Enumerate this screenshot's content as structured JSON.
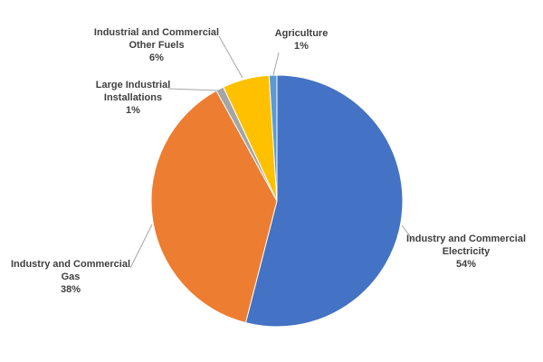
{
  "chart_data": {
    "type": "pie",
    "title": "",
    "slices": [
      {
        "label_lines": [
          "Industry and Commercial",
          "Electricity"
        ],
        "value": 54,
        "value_label": "54%",
        "color": "#4472c4"
      },
      {
        "label_lines": [
          "Industry and Commercial",
          "Gas"
        ],
        "value": 38,
        "value_label": "38%",
        "color": "#ed7d31"
      },
      {
        "label_lines": [
          "Large Industrial",
          "Installations"
        ],
        "value": 1,
        "value_label": "1%",
        "color": "#a5a5a5"
      },
      {
        "label_lines": [
          "Industrial and Commercial",
          "Other Fuels"
        ],
        "value": 6,
        "value_label": "6%",
        "color": "#ffc000"
      },
      {
        "label_lines": [
          "Agriculture"
        ],
        "value": 1,
        "value_label": "1%",
        "color": "#5b9bd5"
      }
    ],
    "legend": "none",
    "start_angle": "12 o'clock, clockwise"
  }
}
